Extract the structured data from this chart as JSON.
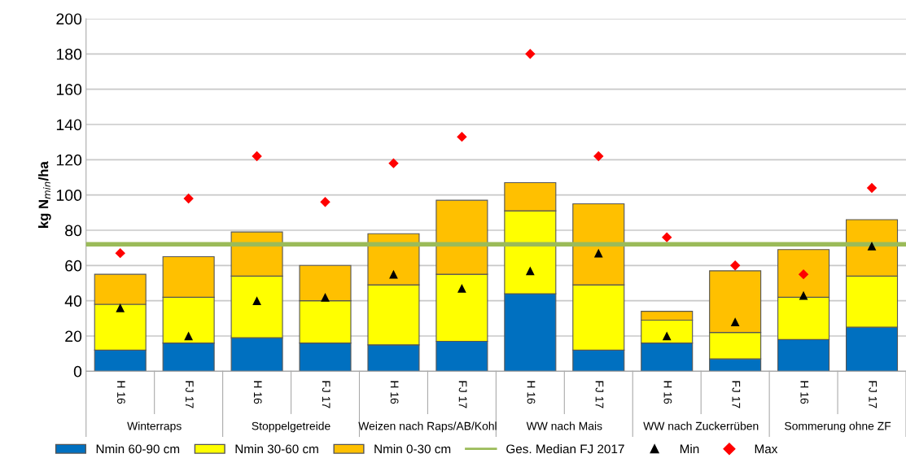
{
  "chart_data": {
    "type": "bar",
    "stacked": true,
    "ylabel": "kg N$_{min}$/ha",
    "categories": [
      "H 16",
      "FJ 17",
      "H 16",
      "FJ 17",
      "H 16",
      "FJ 17",
      "H 16",
      "FJ 17",
      "H 16",
      "FJ 17",
      "H 16",
      "FJ 17"
    ],
    "series": [
      {
        "name": "Nmin 60-90 cm",
        "color": "#0070c0",
        "values": [
          12,
          16,
          19,
          16,
          15,
          17,
          44,
          12,
          16,
          7,
          18,
          25
        ]
      },
      {
        "name": "Nmin 30-60 cm",
        "color": "#ffff00",
        "values": [
          26,
          26,
          35,
          24,
          34,
          38,
          47,
          37,
          13,
          15,
          24,
          29
        ]
      },
      {
        "name": "Nmin 0-30 cm",
        "color": "#ffc000",
        "values": [
          17,
          23,
          25,
          20,
          29,
          42,
          16,
          46,
          5,
          35,
          27,
          32
        ]
      },
      {
        "name": "Min",
        "type": "scatter",
        "marker": "triangle",
        "color": "#000000",
        "values": [
          36,
          20,
          40,
          42,
          55,
          47,
          57,
          67,
          20,
          28,
          43,
          71
        ]
      },
      {
        "name": "Max",
        "type": "scatter",
        "marker": "diamond",
        "color": "#ff0000",
        "values": [
          67,
          98,
          122,
          96,
          118,
          133,
          180,
          122,
          76,
          60,
          55,
          104
        ]
      }
    ],
    "ref_lines": [
      {
        "axis": "y",
        "value": 72,
        "label": "Ges. Median FJ 2017",
        "color": "#9bbb59"
      }
    ],
    "annotations": [
      "Winterraps",
      "Stoppelgetreide",
      "Weizen nach Raps/AB/Kohl",
      "WW nach Mais",
      "WW nach Zuckerrüben",
      "Sommerung ohne ZF"
    ],
    "ylim": [
      0,
      200
    ],
    "yticks": [
      0,
      20,
      40,
      60,
      80,
      100,
      120,
      140,
      160,
      180,
      200
    ],
    "grid": "y",
    "legend": "bottom"
  }
}
